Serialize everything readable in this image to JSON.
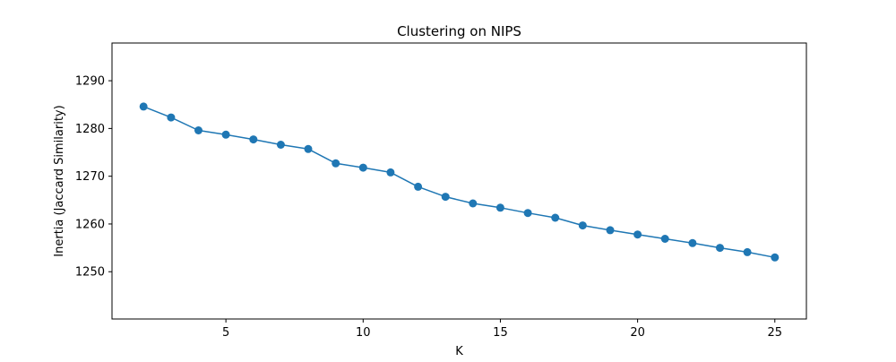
{
  "chart_data": {
    "type": "line",
    "title": "Clustering on NIPS",
    "xlabel": "K",
    "ylabel": "Inertia (Jaccard Similarity)",
    "xlim": [
      0.85,
      26.15
    ],
    "ylim": [
      1240.1,
      1297.9
    ],
    "xticks": [
      5,
      10,
      15,
      20,
      25
    ],
    "yticks": [
      1250,
      1260,
      1270,
      1280,
      1290
    ],
    "grid": false,
    "marker": "circle",
    "series": [
      {
        "color": "#1f77b4",
        "x": [
          2,
          3,
          4,
          5,
          6,
          7,
          8,
          9,
          10,
          11,
          12,
          13,
          14,
          15,
          16,
          17,
          18,
          19,
          20,
          21,
          22,
          23,
          24,
          25
        ],
        "y": [
          1284.6,
          1282.3,
          1279.6,
          1278.7,
          1277.7,
          1276.6,
          1275.7,
          1272.7,
          1271.8,
          1270.8,
          1267.8,
          1265.7,
          1264.3,
          1263.4,
          1262.3,
          1261.3,
          1259.7,
          1258.7,
          1257.8,
          1256.9,
          1256.0,
          1255.0,
          1254.1,
          1253.0
        ]
      }
    ]
  }
}
